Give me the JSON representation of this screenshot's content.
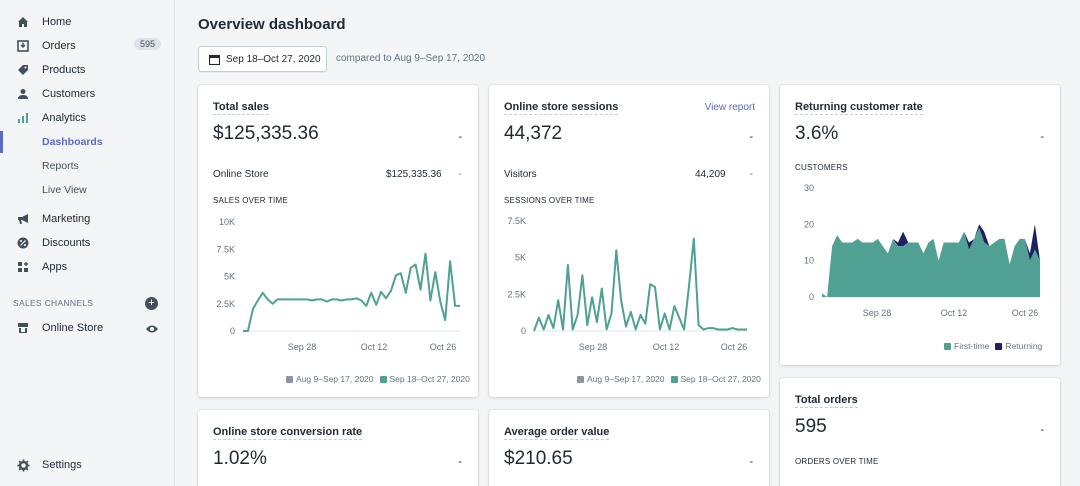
{
  "sidebar": {
    "items": [
      {
        "label": "Home",
        "icon": "home-icon"
      },
      {
        "label": "Orders",
        "icon": "orders-icon",
        "count": "595"
      },
      {
        "label": "Products",
        "icon": "tag-icon"
      },
      {
        "label": "Customers",
        "icon": "person-icon"
      },
      {
        "label": "Analytics",
        "icon": "bar-chart-icon"
      }
    ],
    "analytics_sub": [
      {
        "label": "Dashboards",
        "active": true
      },
      {
        "label": "Reports"
      },
      {
        "label": "Live View"
      }
    ],
    "items2": [
      {
        "label": "Marketing",
        "icon": "megaphone-icon"
      },
      {
        "label": "Discounts",
        "icon": "discount-icon"
      },
      {
        "label": "Apps",
        "icon": "apps-icon"
      }
    ],
    "sales_channels_header": "SALES CHANNELS",
    "online_store": "Online Store",
    "settings": "Settings"
  },
  "header": {
    "title": "Overview dashboard",
    "date_range": "Sep 18–Oct 27, 2020",
    "compare_text": "compared to Aug 9–Sep 17, 2020"
  },
  "cards": {
    "total_sales": {
      "title": "Total sales",
      "value": "$125,335.36",
      "dash": "-",
      "row_label": "Online Store",
      "row_value": "$125,335.36",
      "row_dash": "-",
      "chart_header": "SALES OVER TIME"
    },
    "sessions": {
      "title": "Online store sessions",
      "view_report": "View report",
      "value": "44,372",
      "dash": "-",
      "row_label": "Visitors",
      "row_value": "44,209",
      "row_dash": "-",
      "chart_header": "SESSIONS OVER TIME"
    },
    "returning": {
      "title": "Returning customer rate",
      "value": "3.6%",
      "dash": "-",
      "chart_header": "CUSTOMERS"
    },
    "total_orders": {
      "title": "Total orders",
      "value": "595",
      "dash": "-",
      "chart_header": "ORDERS OVER TIME"
    },
    "conversion": {
      "title": "Online store conversion rate",
      "value": "1.02%",
      "dash": "-"
    },
    "aov": {
      "title": "Average order value",
      "value": "$210.65",
      "dash": "-"
    }
  },
  "legends": {
    "prev": "Aug 9–Sep 17, 2020",
    "curr": "Sep 18–Oct 27, 2020",
    "first_time": "First-time",
    "returning": "Returning"
  },
  "colors": {
    "teal": "#50a093",
    "gray": "#8b96a3",
    "navy": "#1f2063",
    "accent": "#5c6ac4"
  },
  "chart_data": [
    {
      "type": "line",
      "title": "SALES OVER TIME",
      "x_ticks": [
        "Sep 28",
        "Oct 12",
        "Oct 26"
      ],
      "y_ticks": [
        "0",
        "2.5K",
        "5K",
        "7.5K",
        "10K"
      ],
      "ylim": [
        0,
        10000
      ],
      "series": [
        {
          "name": "Sep 18–Oct 27, 2020",
          "values": [
            0,
            0,
            2000,
            2800,
            3500,
            2900,
            2500,
            2900,
            2900,
            2900,
            2900,
            2900,
            2900,
            2900,
            2800,
            2900,
            2900,
            2700,
            2900,
            2900,
            2800,
            2900,
            2900,
            3000,
            2800,
            2300,
            3500,
            2400,
            3600,
            3000,
            3700,
            5100,
            5300,
            3500,
            5800,
            6100,
            3800,
            7100,
            2800,
            5400,
            2700,
            1000,
            6400,
            2300,
            2300
          ]
        }
      ]
    },
    {
      "type": "line",
      "title": "SESSIONS OVER TIME",
      "x_ticks": [
        "Sep 28",
        "Oct 12",
        "Oct 26"
      ],
      "y_ticks": [
        "0",
        "2.5K",
        "5K",
        "7.5K"
      ],
      "ylim": [
        0,
        7500
      ],
      "series": [
        {
          "name": "Sep 18–Oct 27, 2020",
          "values": [
            0,
            900,
            100,
            1100,
            200,
            2100,
            100,
            4500,
            100,
            1100,
            3800,
            400,
            2300,
            600,
            2900,
            100,
            1200,
            5500,
            2100,
            300,
            1300,
            100,
            1100,
            500,
            3200,
            3000,
            100,
            1200,
            100,
            1700,
            900,
            100,
            3000,
            6300,
            400,
            100,
            200,
            200,
            100,
            100,
            100,
            200,
            100,
            100,
            100
          ]
        }
      ]
    },
    {
      "type": "area",
      "title": "CUSTOMERS",
      "x_ticks": [
        "Sep 28",
        "Oct 12",
        "Oct 26"
      ],
      "y_ticks": [
        "0",
        "10",
        "20",
        "30"
      ],
      "ylim": [
        0,
        30
      ],
      "series": [
        {
          "name": "First-time",
          "values": [
            1,
            0,
            14,
            17,
            15,
            15,
            15,
            16,
            15,
            15,
            15,
            16,
            14,
            12,
            16,
            14,
            14,
            15,
            15,
            15,
            12,
            15,
            16,
            10,
            15,
            15,
            15,
            15,
            18,
            13,
            16,
            19,
            15,
            14,
            15,
            16,
            16,
            9,
            14,
            16,
            16,
            10,
            13,
            10
          ]
        },
        {
          "name": "Returning",
          "values": [
            0,
            0,
            0,
            0,
            0,
            0,
            0,
            0,
            0,
            0,
            0,
            0,
            0,
            0,
            0,
            1,
            4,
            0,
            0,
            0,
            0,
            0,
            0,
            0,
            0,
            0,
            0,
            0,
            0,
            2,
            0,
            1,
            3,
            0,
            0,
            0,
            0,
            0,
            0,
            0,
            0,
            2,
            7,
            0
          ]
        }
      ]
    }
  ]
}
